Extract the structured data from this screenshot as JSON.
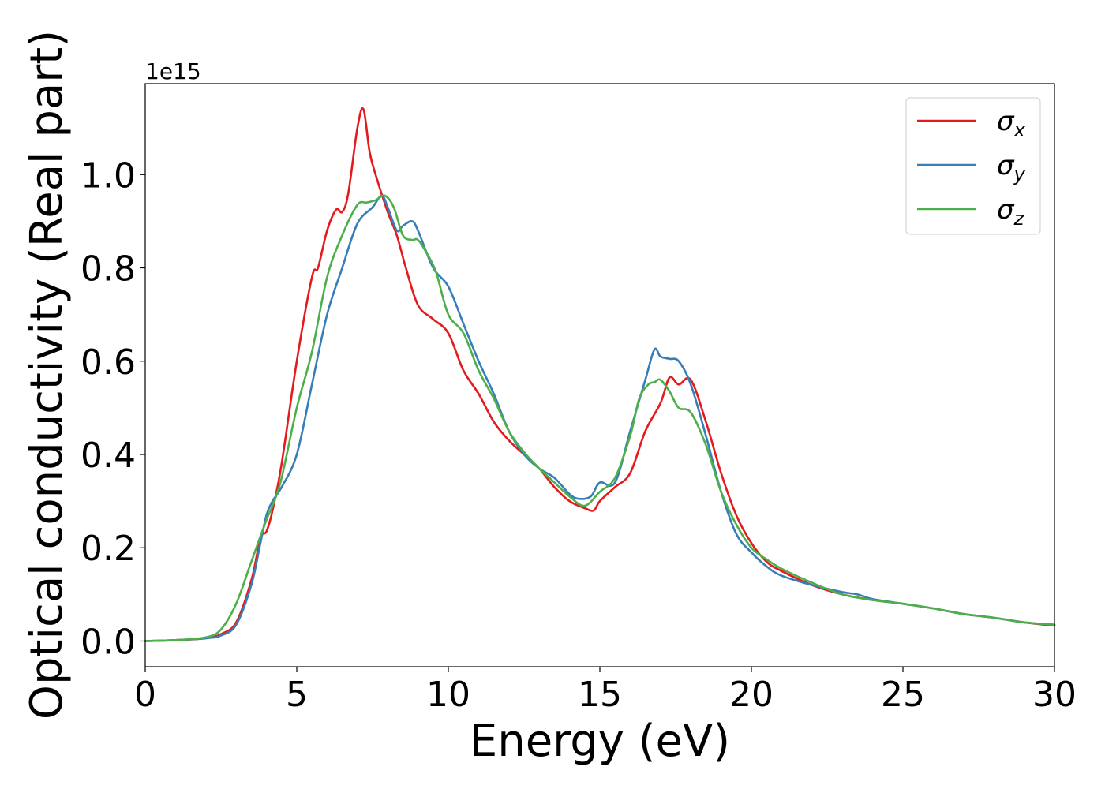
{
  "chart_data": {
    "type": "line",
    "title": "",
    "xlabel": "Energy (eV)",
    "ylabel": "Optical conductivity (Real part)",
    "y_offset_text": "1e15",
    "xlim": [
      0,
      30
    ],
    "ylim": [
      -0.055,
      1.195
    ],
    "y_scale_factor": 1000000000000000.0,
    "xticks": [
      0,
      5,
      10,
      15,
      20,
      25,
      30
    ],
    "xtick_labels": [
      "0",
      "5",
      "10",
      "15",
      "20",
      "25",
      "30"
    ],
    "yticks": [
      0.0,
      0.2,
      0.4,
      0.6,
      0.8,
      1.0
    ],
    "ytick_labels": [
      "0.0",
      "0.2",
      "0.4",
      "0.6",
      "0.8",
      "1.0"
    ],
    "grid": false,
    "legend_position": "top-right",
    "series": [
      {
        "name": "σx",
        "symbol": "σ",
        "subscript": "x",
        "color": "#e41a1c",
        "x": [
          0,
          1,
          2,
          2.5,
          3,
          3.5,
          3.8,
          4.0,
          4.2,
          4.5,
          5.0,
          5.5,
          5.7,
          6.0,
          6.3,
          6.5,
          6.7,
          7.0,
          7.2,
          7.4,
          7.6,
          8.0,
          8.3,
          8.6,
          9.0,
          9.5,
          10.0,
          10.5,
          11.0,
          11.5,
          12.0,
          12.5,
          13.0,
          13.5,
          14.0,
          14.5,
          14.8,
          15.0,
          15.5,
          16.0,
          16.5,
          17.0,
          17.3,
          17.6,
          18.0,
          18.5,
          19.0,
          19.5,
          20.0,
          20.5,
          21.0,
          22.0,
          23.0,
          24.0,
          25.0,
          26.0,
          27.0,
          28.0,
          29.0,
          30.0
        ],
        "values": [
          0.0,
          0.002,
          0.006,
          0.015,
          0.04,
          0.13,
          0.22,
          0.235,
          0.28,
          0.38,
          0.6,
          0.78,
          0.8,
          0.88,
          0.925,
          0.92,
          0.96,
          1.1,
          1.14,
          1.05,
          1.0,
          0.92,
          0.87,
          0.8,
          0.72,
          0.69,
          0.66,
          0.58,
          0.53,
          0.47,
          0.43,
          0.4,
          0.37,
          0.33,
          0.3,
          0.285,
          0.28,
          0.3,
          0.33,
          0.36,
          0.45,
          0.51,
          0.565,
          0.55,
          0.56,
          0.47,
          0.36,
          0.27,
          0.21,
          0.17,
          0.15,
          0.12,
          0.1,
          0.088,
          0.08,
          0.07,
          0.058,
          0.05,
          0.04,
          0.033
        ]
      },
      {
        "name": "σy",
        "symbol": "σ",
        "subscript": "y",
        "color": "#377eb8",
        "x": [
          0,
          1,
          2,
          2.5,
          3,
          3.5,
          3.8,
          4.0,
          4.2,
          4.5,
          5.0,
          5.5,
          6.0,
          6.5,
          7.0,
          7.5,
          7.8,
          8.0,
          8.3,
          8.5,
          8.8,
          9.0,
          9.5,
          10.0,
          10.5,
          11.0,
          11.5,
          12.0,
          12.5,
          13.0,
          13.5,
          14.0,
          14.3,
          14.7,
          15.0,
          15.5,
          16.0,
          16.5,
          16.8,
          17.0,
          17.3,
          17.6,
          18.0,
          18.5,
          19.0,
          19.5,
          20.0,
          20.5,
          21.0,
          22.0,
          23.0,
          23.5,
          24.0,
          25.0,
          26.0,
          27.0,
          28.0,
          29.0,
          30.0
        ],
        "values": [
          0.0,
          0.002,
          0.006,
          0.012,
          0.035,
          0.12,
          0.21,
          0.27,
          0.3,
          0.33,
          0.4,
          0.55,
          0.7,
          0.8,
          0.895,
          0.93,
          0.955,
          0.93,
          0.88,
          0.89,
          0.9,
          0.88,
          0.8,
          0.76,
          0.68,
          0.6,
          0.53,
          0.45,
          0.4,
          0.37,
          0.35,
          0.315,
          0.305,
          0.31,
          0.34,
          0.34,
          0.45,
          0.56,
          0.625,
          0.61,
          0.605,
          0.6,
          0.55,
          0.44,
          0.32,
          0.23,
          0.19,
          0.16,
          0.14,
          0.12,
          0.105,
          0.1,
          0.09,
          0.08,
          0.07,
          0.058,
          0.05,
          0.04,
          0.035
        ]
      },
      {
        "name": "σz",
        "symbol": "σ",
        "subscript": "z",
        "color": "#4daf4a",
        "x": [
          0,
          1,
          2,
          2.5,
          3,
          3.5,
          4.0,
          4.2,
          4.5,
          5.0,
          5.5,
          6.0,
          6.5,
          7.0,
          7.3,
          7.6,
          7.9,
          8.2,
          8.5,
          8.8,
          9.0,
          9.3,
          9.6,
          10.0,
          10.5,
          11.0,
          11.5,
          12.0,
          12.5,
          13.0,
          13.5,
          14.0,
          14.5,
          15.0,
          15.5,
          16.0,
          16.3,
          16.6,
          16.8,
          17.0,
          17.3,
          17.6,
          18.0,
          18.5,
          19.0,
          19.5,
          20.0,
          20.5,
          21.0,
          22.0,
          23.0,
          24.0,
          25.0,
          26.0,
          27.0,
          28.0,
          29.0,
          30.0
        ],
        "values": [
          0.0,
          0.002,
          0.008,
          0.025,
          0.08,
          0.17,
          0.26,
          0.29,
          0.35,
          0.5,
          0.62,
          0.78,
          0.87,
          0.935,
          0.94,
          0.945,
          0.955,
          0.93,
          0.87,
          0.86,
          0.86,
          0.83,
          0.79,
          0.7,
          0.66,
          0.58,
          0.52,
          0.45,
          0.405,
          0.37,
          0.34,
          0.31,
          0.29,
          0.32,
          0.35,
          0.44,
          0.52,
          0.55,
          0.555,
          0.56,
          0.535,
          0.5,
          0.49,
          0.42,
          0.32,
          0.25,
          0.2,
          0.175,
          0.155,
          0.125,
          0.1,
          0.088,
          0.08,
          0.07,
          0.058,
          0.05,
          0.04,
          0.035
        ]
      }
    ]
  }
}
